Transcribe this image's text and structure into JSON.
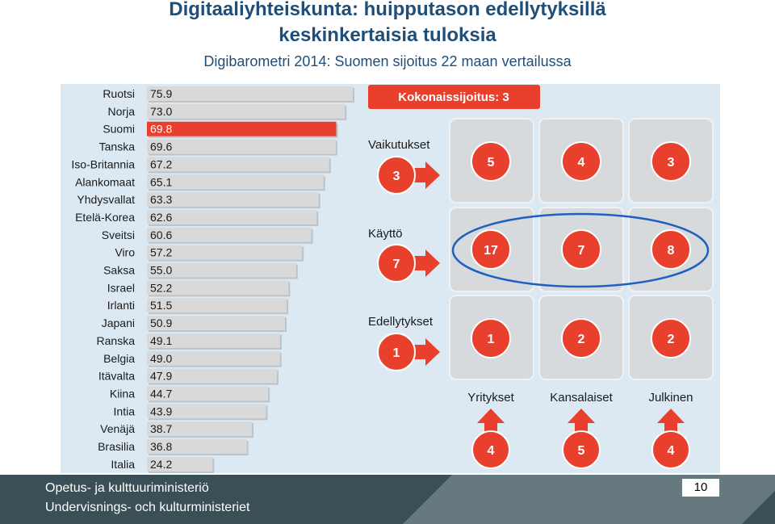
{
  "header": {
    "title_line1": "Digitaaliyhteiskunta: huipputason edellytyksillä",
    "title_line2": "keskinkertaisia tuloksia",
    "subtitle": "Digibarometri 2014: Suomen sijoitus 22 maan vertailussa"
  },
  "chart_data": [
    {
      "type": "bar",
      "orientation": "horizontal",
      "categories": [
        "Ruotsi",
        "Norja",
        "Suomi",
        "Tanska",
        "Iso-Britannia",
        "Alankomaat",
        "Yhdysvallat",
        "Etelä-Korea",
        "Sveitsi",
        "Viro",
        "Saksa",
        "Israel",
        "Irlanti",
        "Japani",
        "Ranska",
        "Belgia",
        "Itävalta",
        "Kiina",
        "Intia",
        "Venäjä",
        "Brasilia",
        "Italia"
      ],
      "values": [
        75.9,
        73.0,
        69.8,
        69.6,
        67.2,
        65.1,
        63.3,
        62.6,
        60.6,
        57.2,
        55.0,
        52.2,
        51.5,
        50.9,
        49.1,
        49.0,
        47.9,
        44.7,
        43.9,
        38.7,
        36.8,
        24.2
      ],
      "value_labels": [
        "75.9",
        "73.0",
        "69.8",
        "69.6",
        "67.2",
        "65.1",
        "63.3",
        "62.6",
        "60.6",
        "57.2",
        "55.0",
        "52.2",
        "51.5",
        "50.9",
        "49.1",
        "49.0",
        "47.9",
        "44.7",
        "43.9",
        "38.7",
        "36.8",
        "24.2"
      ],
      "highlight": "Suomi",
      "highlight_color": "#e8402d",
      "bar_color": "#d9d9d9"
    },
    {
      "type": "table",
      "overall_label": "Kokonaissijoitus: 3",
      "rows": [
        {
          "label": "Vaikutukset",
          "overall": 3,
          "values": [
            5,
            4,
            3
          ]
        },
        {
          "label": "Käyttö",
          "overall": 7,
          "values": [
            17,
            7,
            8
          ]
        },
        {
          "label": "Edellytykset",
          "overall": 1,
          "values": [
            1,
            2,
            2
          ]
        }
      ],
      "columns": [
        {
          "label": "Yritykset",
          "overall": 4
        },
        {
          "label": "Kansalaiset",
          "overall": 5
        },
        {
          "label": "Julkinen",
          "overall": 4
        }
      ],
      "highlighted_row": "Käyttö",
      "accent_color": "#e8402d",
      "highlight_ring_color": "#1f5fbf"
    }
  ],
  "footer": {
    "org_line1": "Opetus- ja kulttuuriministeriö",
    "org_line2": "Undervisnings- och kulturministeriet",
    "page_number": "10"
  }
}
